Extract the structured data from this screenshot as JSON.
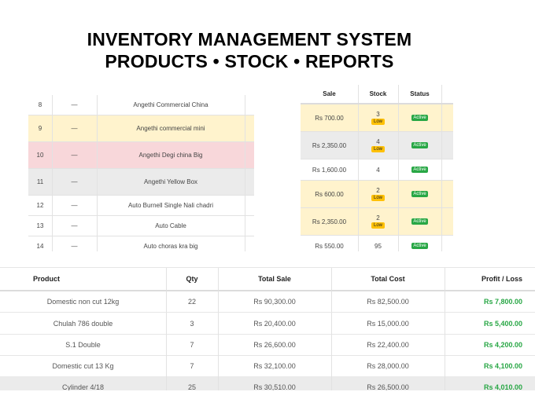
{
  "header": {
    "title_line1": "INVENTORY MANAGEMENT SYSTEM",
    "title_line2": "PRODUCTS • STOCK • REPORTS"
  },
  "products": [
    {
      "id": "8",
      "dash": "—",
      "name": "Angethi Commercial China"
    },
    {
      "id": "9",
      "dash": "—",
      "name": "Angethi commercial mini"
    },
    {
      "id": "10",
      "dash": "—",
      "name": "Angethi Degi china Big"
    },
    {
      "id": "11",
      "dash": "—",
      "name": "Angethi Yellow Box"
    },
    {
      "id": "12",
      "dash": "—",
      "name": "Auto Burnell Single Nali chadri"
    },
    {
      "id": "13",
      "dash": "—",
      "name": "Auto Cable"
    },
    {
      "id": "14",
      "dash": "—",
      "name": "Auto choras kra big"
    }
  ],
  "stock_table": {
    "headers": {
      "sale": "Sale",
      "stock": "Stock",
      "status": "Status"
    },
    "rows": [
      {
        "sale": "Rs 700.00",
        "stock": "3",
        "low": "Low",
        "status": "Active"
      },
      {
        "sale": "Rs 2,350.00",
        "stock": "4",
        "low": "Low",
        "status": "Active"
      },
      {
        "sale": "Rs 1,600.00",
        "stock": "4",
        "low": "",
        "status": "Active"
      },
      {
        "sale": "Rs 600.00",
        "stock": "2",
        "low": "Low",
        "status": "Active"
      },
      {
        "sale": "Rs 2,350.00",
        "stock": "2",
        "low": "Low",
        "status": "Active"
      },
      {
        "sale": "Rs 550.00",
        "stock": "95",
        "low": "",
        "status": "Active"
      }
    ]
  },
  "report": {
    "headers": {
      "product": "Product",
      "qty": "Qty",
      "total_sale": "Total Sale",
      "total_cost": "Total Cost",
      "profit_loss": "Profit / Loss"
    },
    "rows": [
      {
        "product": "Domestic non cut 12kg",
        "qty": "22",
        "total_sale": "Rs 90,300.00",
        "total_cost": "Rs 82,500.00",
        "profit": "Rs 7,800.00"
      },
      {
        "product": "Chulah 786 double",
        "qty": "3",
        "total_sale": "Rs 20,400.00",
        "total_cost": "Rs 15,000.00",
        "profit": "Rs 5,400.00"
      },
      {
        "product": "S.1 Double",
        "qty": "7",
        "total_sale": "Rs 26,600.00",
        "total_cost": "Rs 22,400.00",
        "profit": "Rs 4,200.00"
      },
      {
        "product": "Domestic cut 13 Kg",
        "qty": "7",
        "total_sale": "Rs 32,100.00",
        "total_cost": "Rs 28,000.00",
        "profit": "Rs 4,100.00"
      },
      {
        "product": "Cylinder 4/18",
        "qty": "25",
        "total_sale": "Rs 30,510.00",
        "total_cost": "Rs 26,500.00",
        "profit": "Rs 4,010.00"
      }
    ]
  }
}
